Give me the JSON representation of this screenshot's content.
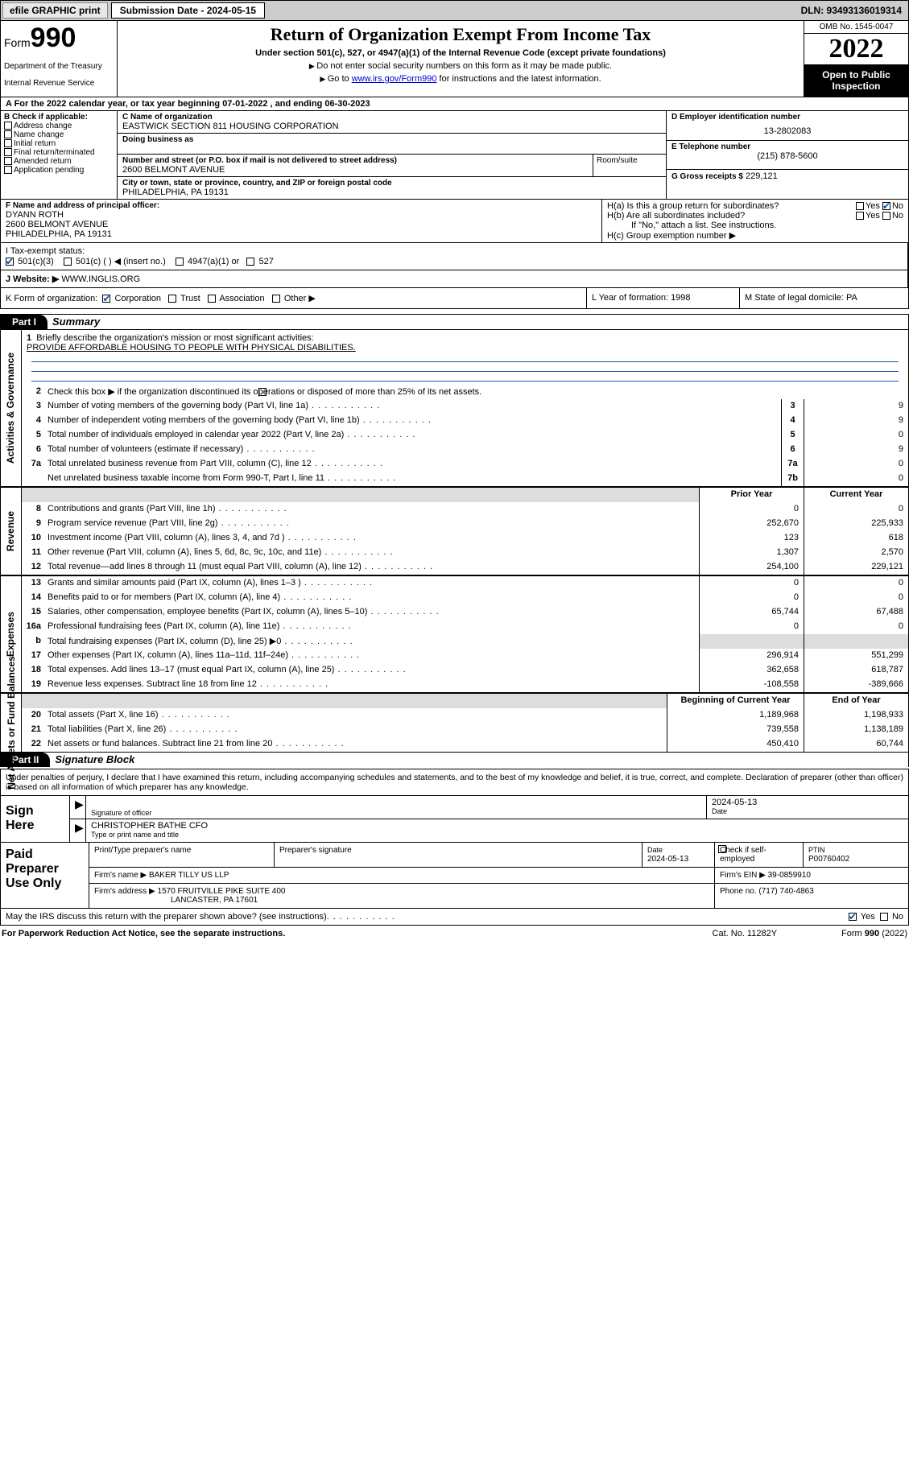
{
  "topbar": {
    "efile": "efile GRAPHIC print",
    "submission_label": "Submission Date - 2024-05-15",
    "dln": "DLN: 93493136019314"
  },
  "header": {
    "form_word": "Form",
    "form_num": "990",
    "dept": "Department of the Treasury",
    "irs": "Internal Revenue Service",
    "title": "Return of Organization Exempt From Income Tax",
    "sub1": "Under section 501(c), 527, or 4947(a)(1) of the Internal Revenue Code (except private foundations)",
    "sub2": "Do not enter social security numbers on this form as it may be made public.",
    "sub3_pre": "Go to ",
    "sub3_link": "www.irs.gov/Form990",
    "sub3_post": " for instructions and the latest information.",
    "omb": "OMB No. 1545-0047",
    "year": "2022",
    "open": "Open to Public Inspection"
  },
  "period": {
    "a": "A For the 2022 calendar year, or tax year beginning 07-01-2022   , and ending 06-30-2023"
  },
  "b": {
    "label": "B Check if applicable:",
    "items": [
      "Address change",
      "Name change",
      "Initial return",
      "Final return/terminated",
      "Amended return",
      "Application pending"
    ]
  },
  "c": {
    "name_lbl": "C Name of organization",
    "name": "EASTWICK SECTION 811 HOUSING CORPORATION",
    "dba_lbl": "Doing business as",
    "addr_lbl": "Number and street (or P.O. box if mail is not delivered to street address)",
    "addr": "2600 BELMONT AVENUE",
    "room_lbl": "Room/suite",
    "city_lbl": "City or town, state or province, country, and ZIP or foreign postal code",
    "city": "PHILADELPHIA, PA  19131"
  },
  "d": {
    "lbl": "D Employer identification number",
    "val": "13-2802083"
  },
  "e": {
    "lbl": "E Telephone number",
    "val": "(215) 878-5600"
  },
  "g": {
    "lbl": "G Gross receipts $",
    "val": "229,121"
  },
  "f": {
    "lbl": "F  Name and address of principal officer:",
    "name": "DYANN ROTH",
    "addr1": "2600 BELMONT AVENUE",
    "addr2": "PHILADELPHIA, PA  19131"
  },
  "h": {
    "ha": "H(a)  Is this a group return for subordinates?",
    "hb": "H(b)  Are all subordinates included?",
    "hb_note": "If \"No,\" attach a list. See instructions.",
    "hc": "H(c)  Group exemption number ▶",
    "yes": "Yes",
    "no": "No"
  },
  "i": {
    "lbl": "I     Tax-exempt status:",
    "opts": [
      "501(c)(3)",
      "501(c) (  ) ◀ (insert no.)",
      "4947(a)(1) or",
      "527"
    ]
  },
  "j": {
    "lbl": "J     Website: ▶",
    "val": "WWW.INGLIS.ORG"
  },
  "k": {
    "lbl": "K Form of organization:",
    "opts": [
      "Corporation",
      "Trust",
      "Association",
      "Other ▶"
    ]
  },
  "l": {
    "lbl": "L Year of formation:",
    "val": "1998"
  },
  "m": {
    "lbl": "M State of legal domicile:",
    "val": "PA"
  },
  "part1": {
    "hdr": "Part I",
    "title": "Summary"
  },
  "summary": {
    "q1": "Briefly describe the organization's mission or most significant activities:",
    "mission": "PROVIDE AFFORDABLE HOUSING TO PEOPLE WITH PHYSICAL DISABILITIES.",
    "q2": "Check this box ▶        if the organization discontinued its operations or disposed of more than 25% of its net assets.",
    "lines_gov": [
      {
        "n": "3",
        "d": "Number of voting members of the governing body (Part VI, line 1a)",
        "box": "3",
        "v": "9"
      },
      {
        "n": "4",
        "d": "Number of independent voting members of the governing body (Part VI, line 1b)",
        "box": "4",
        "v": "9"
      },
      {
        "n": "5",
        "d": "Total number of individuals employed in calendar year 2022 (Part V, line 2a)",
        "box": "5",
        "v": "0"
      },
      {
        "n": "6",
        "d": "Total number of volunteers (estimate if necessary)",
        "box": "6",
        "v": "9"
      },
      {
        "n": "7a",
        "d": "Total unrelated business revenue from Part VIII, column (C), line 12",
        "box": "7a",
        "v": "0"
      },
      {
        "n": "",
        "d": "Net unrelated business taxable income from Form 990-T, Part I, line 11",
        "box": "7b",
        "v": "0"
      }
    ],
    "hdr_prior": "Prior Year",
    "hdr_curr": "Current Year",
    "rev": [
      {
        "n": "8",
        "d": "Contributions and grants (Part VIII, line 1h)",
        "p": "0",
        "c": "0"
      },
      {
        "n": "9",
        "d": "Program service revenue (Part VIII, line 2g)",
        "p": "252,670",
        "c": "225,933"
      },
      {
        "n": "10",
        "d": "Investment income (Part VIII, column (A), lines 3, 4, and 7d )",
        "p": "123",
        "c": "618"
      },
      {
        "n": "11",
        "d": "Other revenue (Part VIII, column (A), lines 5, 6d, 8c, 9c, 10c, and 11e)",
        "p": "1,307",
        "c": "2,570"
      },
      {
        "n": "12",
        "d": "Total revenue—add lines 8 through 11 (must equal Part VIII, column (A), line 12)",
        "p": "254,100",
        "c": "229,121"
      }
    ],
    "exp": [
      {
        "n": "13",
        "d": "Grants and similar amounts paid (Part IX, column (A), lines 1–3 )",
        "p": "0",
        "c": "0"
      },
      {
        "n": "14",
        "d": "Benefits paid to or for members (Part IX, column (A), line 4)",
        "p": "0",
        "c": "0"
      },
      {
        "n": "15",
        "d": "Salaries, other compensation, employee benefits (Part IX, column (A), lines 5–10)",
        "p": "65,744",
        "c": "67,488"
      },
      {
        "n": "16a",
        "d": "Professional fundraising fees (Part IX, column (A), line 11e)",
        "p": "0",
        "c": "0"
      },
      {
        "n": "b",
        "d": "Total fundraising expenses (Part IX, column (D), line 25) ▶0",
        "p": "",
        "c": "",
        "shade": true
      },
      {
        "n": "17",
        "d": "Other expenses (Part IX, column (A), lines 11a–11d, 11f–24e)",
        "p": "296,914",
        "c": "551,299"
      },
      {
        "n": "18",
        "d": "Total expenses. Add lines 13–17 (must equal Part IX, column (A), line 25)",
        "p": "362,658",
        "c": "618,787"
      },
      {
        "n": "19",
        "d": "Revenue less expenses. Subtract line 18 from line 12",
        "p": "-108,558",
        "c": "-389,666"
      }
    ],
    "hdr_begin": "Beginning of Current Year",
    "hdr_end": "End of Year",
    "net": [
      {
        "n": "20",
        "d": "Total assets (Part X, line 16)",
        "p": "1,189,968",
        "c": "1,198,933"
      },
      {
        "n": "21",
        "d": "Total liabilities (Part X, line 26)",
        "p": "739,558",
        "c": "1,138,189"
      },
      {
        "n": "22",
        "d": "Net assets or fund balances. Subtract line 21 from line 20",
        "p": "450,410",
        "c": "60,744"
      }
    ],
    "tabs": {
      "gov": "Activities & Governance",
      "rev": "Revenue",
      "exp": "Expenses",
      "net": "Net Assets or Fund Balances"
    }
  },
  "part2": {
    "hdr": "Part II",
    "title": "Signature Block"
  },
  "sig": {
    "decl": "Under penalties of perjury, I declare that I have examined this return, including accompanying schedules and statements, and to the best of my knowledge and belief, it is true, correct, and complete. Declaration of preparer (other than officer) is based on all information of which preparer has any knowledge.",
    "sign_here": "Sign Here",
    "sig_officer": "Signature of officer",
    "date_lbl": "Date",
    "date": "2024-05-13",
    "officer": "CHRISTOPHER BATHE CFO",
    "type_name": "Type or print name and title"
  },
  "paid": {
    "label": "Paid Preparer Use Only",
    "h1": "Print/Type preparer's name",
    "h2": "Preparer's signature",
    "h3_lbl": "Date",
    "h3": "2024-05-13",
    "h4": "Check        if self-employed",
    "h5_lbl": "PTIN",
    "h5": "P00760402",
    "firm_lbl": "Firm's name     ▶",
    "firm": "BAKER TILLY US LLP",
    "ein_lbl": "Firm's EIN ▶",
    "ein": "39-0859910",
    "addr_lbl": "Firm's address ▶",
    "addr1": "1570 FRUITVILLE PIKE SUITE 400",
    "addr2": "LANCASTER, PA  17601",
    "phone_lbl": "Phone no.",
    "phone": "(717) 740-4863"
  },
  "footer": {
    "discuss": "May the IRS discuss this return with the preparer shown above? (see instructions)",
    "yes": "Yes",
    "no": "No",
    "pra": "For Paperwork Reduction Act Notice, see the separate instructions.",
    "cat": "Cat. No. 11282Y",
    "form": "Form 990 (2022)"
  }
}
